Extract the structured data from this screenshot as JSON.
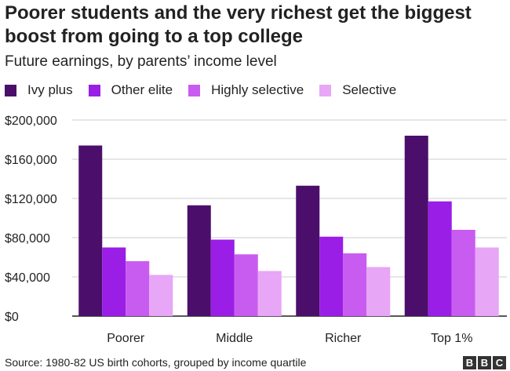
{
  "chart_data": {
    "type": "bar",
    "title": "Poorer students and the very richest get the biggest boost from going to a top college",
    "subtitle": "Future earnings, by parents’ income level",
    "categories": [
      "Poorer",
      "Middle",
      "Richer",
      "Top 1%"
    ],
    "series": [
      {
        "name": "Ivy plus",
        "color": "#4b0f6b",
        "values": [
          174000,
          113000,
          133000,
          184000
        ]
      },
      {
        "name": "Other elite",
        "color": "#9a1ee6",
        "values": [
          70000,
          78000,
          81000,
          117000
        ]
      },
      {
        "name": "Highly selective",
        "color": "#c95cf0",
        "values": [
          56000,
          63000,
          64000,
          88000
        ]
      },
      {
        "name": "Selective",
        "color": "#e8a6f7",
        "values": [
          42000,
          46000,
          50000,
          70000
        ]
      }
    ],
    "y_ticks": [
      "$0",
      "$40,000",
      "$80,000",
      "$120,000",
      "$160,000",
      "$200,000"
    ],
    "ylim": [
      0,
      200000
    ],
    "grid": true,
    "legend_position": "top"
  },
  "source": "Source: 1980-82 US birth cohorts, grouped by income quartile",
  "logo": [
    "B",
    "B",
    "C"
  ]
}
